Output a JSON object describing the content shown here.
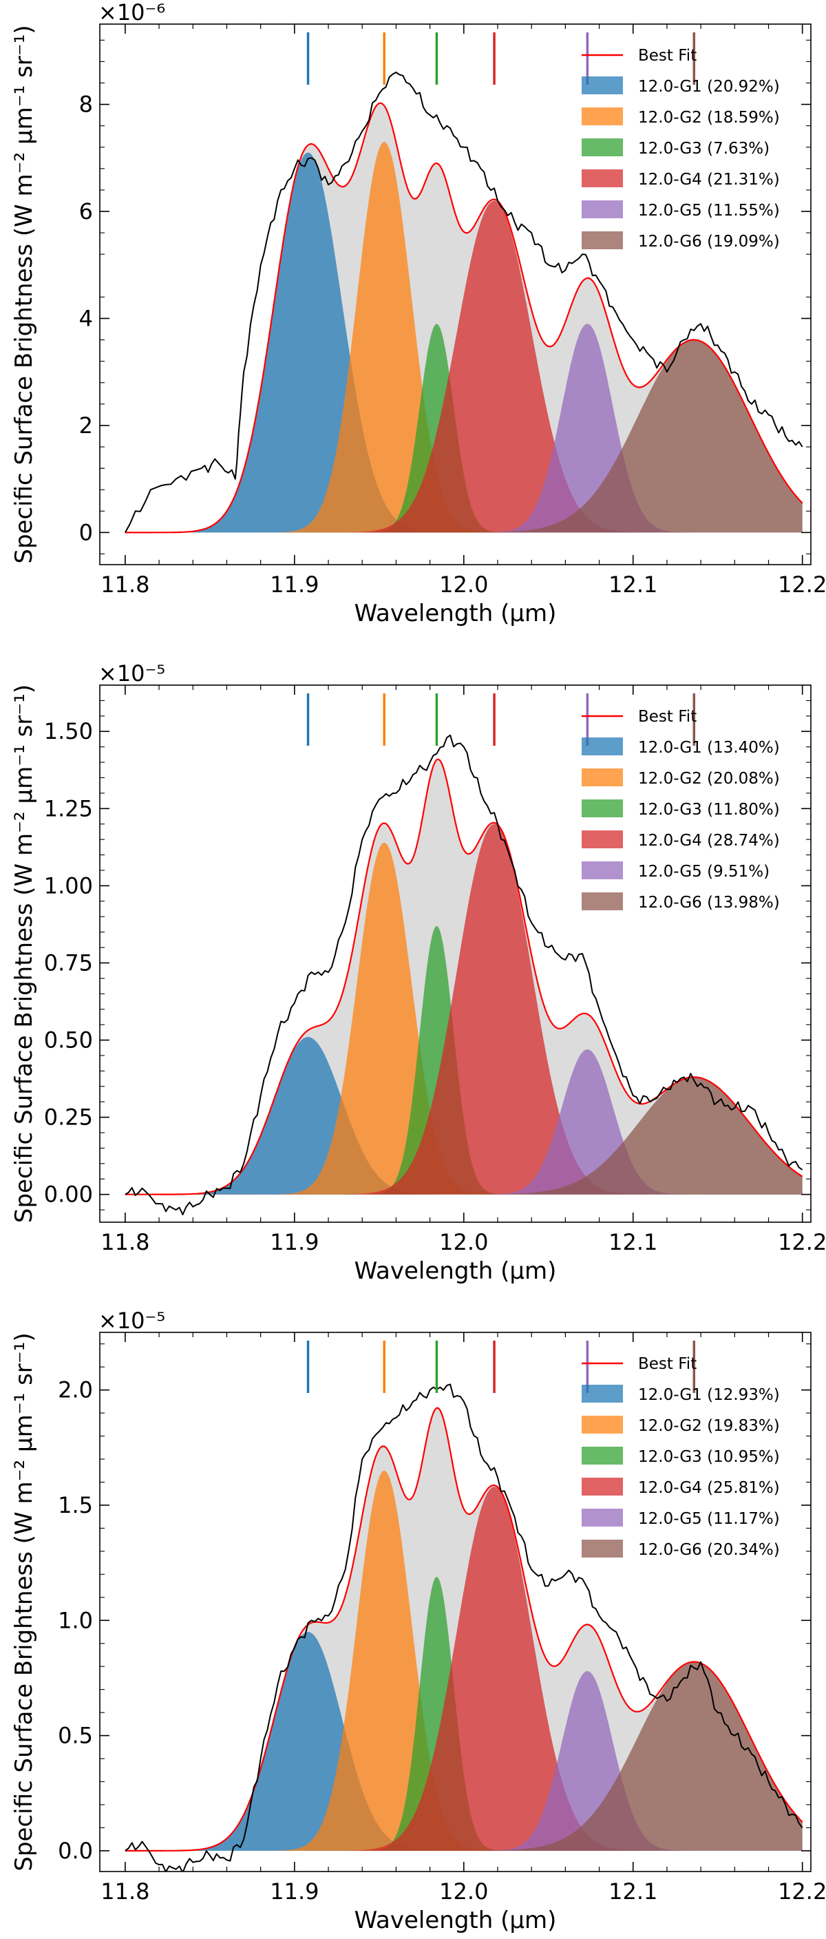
{
  "colors": {
    "g1": "#1f77b4",
    "g2": "#ff7f0e",
    "g3": "#2ca02c",
    "g4": "#d62728",
    "g5": "#9467bd",
    "g6": "#8c564b",
    "best_fit": "#ff0000",
    "envelope_fill": "#dcdcdc",
    "data_line": "#000000"
  },
  "chart_data": [
    {
      "type": "area",
      "xlabel": "Wavelength (μm)",
      "ylabel": "Specific Surface Brightness (W m⁻² μm⁻¹ sr⁻¹)",
      "y_scale_label": "×10⁻⁶",
      "xlim": [
        11.785,
        12.205
      ],
      "ylim": [
        -0.6,
        9.5
      ],
      "x_ticks": [
        "11.8",
        "11.9",
        "12.0",
        "12.1",
        "12.2"
      ],
      "y_ticks": [
        "0",
        "2",
        "4",
        "6",
        "8"
      ],
      "y_tick_values": [
        0,
        2,
        4,
        6,
        8
      ],
      "legend_position": "top-right",
      "best_fit_label": "Best Fit",
      "components": [
        {
          "name": "12.0-G1 (20.92%)",
          "center": 11.908,
          "amplitude": 7.1,
          "sigma": 0.02
        },
        {
          "name": "12.0-G2 (18.59%)",
          "center": 11.953,
          "amplitude": 7.3,
          "sigma": 0.016
        },
        {
          "name": "12.0-G3 (7.63%)",
          "center": 11.984,
          "amplitude": 3.9,
          "sigma": 0.01
        },
        {
          "name": "12.0-G4 (21.31%)",
          "center": 12.018,
          "amplitude": 6.2,
          "sigma": 0.022
        },
        {
          "name": "12.0-G5 (11.55%)",
          "center": 12.073,
          "amplitude": 3.9,
          "sigma": 0.015
        },
        {
          "name": "12.0-G6 (19.09%)",
          "center": 12.136,
          "amplitude": 3.6,
          "sigma": 0.033
        }
      ],
      "observed": {
        "x": [
          11.8,
          11.815,
          11.83,
          11.845,
          11.855,
          11.865,
          11.87,
          11.88,
          11.89,
          11.9,
          11.91,
          11.92,
          11.93,
          11.94,
          11.95,
          11.96,
          11.97,
          11.98,
          11.99,
          12.0,
          12.01,
          12.02,
          12.03,
          12.04,
          12.05,
          12.06,
          12.07,
          12.08,
          12.09,
          12.1,
          12.11,
          12.12,
          12.13,
          12.14,
          12.15,
          12.16,
          12.17,
          12.18,
          12.19,
          12.2
        ],
        "y": [
          0.0,
          0.8,
          1.0,
          1.2,
          1.3,
          1.0,
          3.0,
          5.0,
          6.2,
          6.8,
          7.0,
          6.5,
          6.9,
          7.5,
          8.2,
          8.6,
          8.3,
          7.8,
          7.6,
          7.2,
          6.8,
          6.2,
          5.8,
          5.6,
          5.0,
          4.9,
          5.2,
          4.7,
          4.1,
          3.6,
          3.3,
          3.0,
          3.6,
          3.9,
          3.5,
          3.0,
          2.4,
          2.2,
          1.8,
          1.6
        ]
      }
    },
    {
      "type": "area",
      "xlabel": "Wavelength (μm)",
      "ylabel": "Specific Surface Brightness (W m⁻² μm⁻¹ sr⁻¹)",
      "y_scale_label": "×10⁻⁵",
      "xlim": [
        11.785,
        12.205
      ],
      "ylim": [
        -0.09,
        1.65
      ],
      "x_ticks": [
        "11.8",
        "11.9",
        "12.0",
        "12.1",
        "12.2"
      ],
      "y_ticks": [
        "0.00",
        "0.25",
        "0.50",
        "0.75",
        "1.00",
        "1.25",
        "1.50"
      ],
      "y_tick_values": [
        0,
        0.25,
        0.5,
        0.75,
        1.0,
        1.25,
        1.5
      ],
      "legend_position": "top-right",
      "best_fit_label": "Best Fit",
      "components": [
        {
          "name": "12.0-G1 (13.40%)",
          "center": 11.908,
          "amplitude": 0.51,
          "sigma": 0.02
        },
        {
          "name": "12.0-G2 (20.08%)",
          "center": 11.953,
          "amplitude": 1.14,
          "sigma": 0.016
        },
        {
          "name": "12.0-G3 (11.80%)",
          "center": 11.984,
          "amplitude": 0.87,
          "sigma": 0.01
        },
        {
          "name": "12.0-G4 (28.74%)",
          "center": 12.018,
          "amplitude": 1.2,
          "sigma": 0.022
        },
        {
          "name": "12.0-G5 (9.51%)",
          "center": 12.073,
          "amplitude": 0.47,
          "sigma": 0.015
        },
        {
          "name": "12.0-G6 (13.98%)",
          "center": 12.136,
          "amplitude": 0.38,
          "sigma": 0.033
        }
      ],
      "observed": {
        "x": [
          11.8,
          11.81,
          11.82,
          11.83,
          11.84,
          11.85,
          11.86,
          11.87,
          11.88,
          11.89,
          11.9,
          11.91,
          11.92,
          11.93,
          11.94,
          11.95,
          11.96,
          11.97,
          11.98,
          11.99,
          12.0,
          12.01,
          12.02,
          12.03,
          12.04,
          12.05,
          12.06,
          12.07,
          12.08,
          12.09,
          12.1,
          12.11,
          12.12,
          12.13,
          12.14,
          12.15,
          12.16,
          12.17,
          12.18,
          12.19,
          12.2
        ],
        "y": [
          0.0,
          0.02,
          -0.03,
          -0.05,
          -0.04,
          0.0,
          0.02,
          0.1,
          0.32,
          0.52,
          0.62,
          0.72,
          0.72,
          0.88,
          1.15,
          1.28,
          1.3,
          1.36,
          1.4,
          1.48,
          1.45,
          1.3,
          1.2,
          1.05,
          0.88,
          0.8,
          0.76,
          0.78,
          0.6,
          0.45,
          0.32,
          0.3,
          0.34,
          0.38,
          0.36,
          0.3,
          0.28,
          0.28,
          0.2,
          0.12,
          0.08
        ]
      }
    },
    {
      "type": "area",
      "xlabel": "Wavelength (μm)",
      "ylabel": "Specific Surface Brightness (W m⁻² μm⁻¹ sr⁻¹)",
      "y_scale_label": "×10⁻⁵",
      "xlim": [
        11.785,
        12.205
      ],
      "ylim": [
        -0.09,
        2.25
      ],
      "x_ticks": [
        "11.8",
        "11.9",
        "12.0",
        "12.1",
        "12.2"
      ],
      "y_ticks": [
        "0.0",
        "0.5",
        "1.0",
        "1.5",
        "2.0"
      ],
      "y_tick_values": [
        0,
        0.5,
        1.0,
        1.5,
        2.0
      ],
      "legend_position": "top-right",
      "best_fit_label": "Best Fit",
      "components": [
        {
          "name": "12.0-G1 (12.93%)",
          "center": 11.908,
          "amplitude": 0.95,
          "sigma": 0.02
        },
        {
          "name": "12.0-G2 (19.83%)",
          "center": 11.953,
          "amplitude": 1.65,
          "sigma": 0.016
        },
        {
          "name": "12.0-G3 (10.95%)",
          "center": 11.984,
          "amplitude": 1.19,
          "sigma": 0.01
        },
        {
          "name": "12.0-G4 (25.81%)",
          "center": 12.018,
          "amplitude": 1.58,
          "sigma": 0.022
        },
        {
          "name": "12.0-G5 (11.17%)",
          "center": 12.073,
          "amplitude": 0.78,
          "sigma": 0.015
        },
        {
          "name": "12.0-G6 (20.34%)",
          "center": 12.136,
          "amplitude": 0.82,
          "sigma": 0.033
        }
      ],
      "observed": {
        "x": [
          11.8,
          11.81,
          11.82,
          11.83,
          11.84,
          11.85,
          11.86,
          11.87,
          11.88,
          11.89,
          11.9,
          11.91,
          11.92,
          11.93,
          11.94,
          11.95,
          11.96,
          11.97,
          11.98,
          11.99,
          12.0,
          12.01,
          12.02,
          12.03,
          12.04,
          12.05,
          12.06,
          12.07,
          12.08,
          12.09,
          12.1,
          12.11,
          12.12,
          12.13,
          12.14,
          12.15,
          12.16,
          12.17,
          12.18,
          12.19,
          12.2
        ],
        "y": [
          0.0,
          0.04,
          -0.06,
          -0.08,
          -0.05,
          -0.02,
          -0.04,
          0.05,
          0.4,
          0.72,
          0.88,
          1.0,
          1.02,
          1.22,
          1.7,
          1.82,
          1.88,
          1.95,
          2.0,
          2.02,
          1.95,
          1.72,
          1.62,
          1.45,
          1.22,
          1.15,
          1.2,
          1.18,
          1.02,
          0.95,
          0.82,
          0.68,
          0.65,
          0.75,
          0.82,
          0.6,
          0.5,
          0.42,
          0.3,
          0.2,
          0.1
        ]
      }
    }
  ]
}
